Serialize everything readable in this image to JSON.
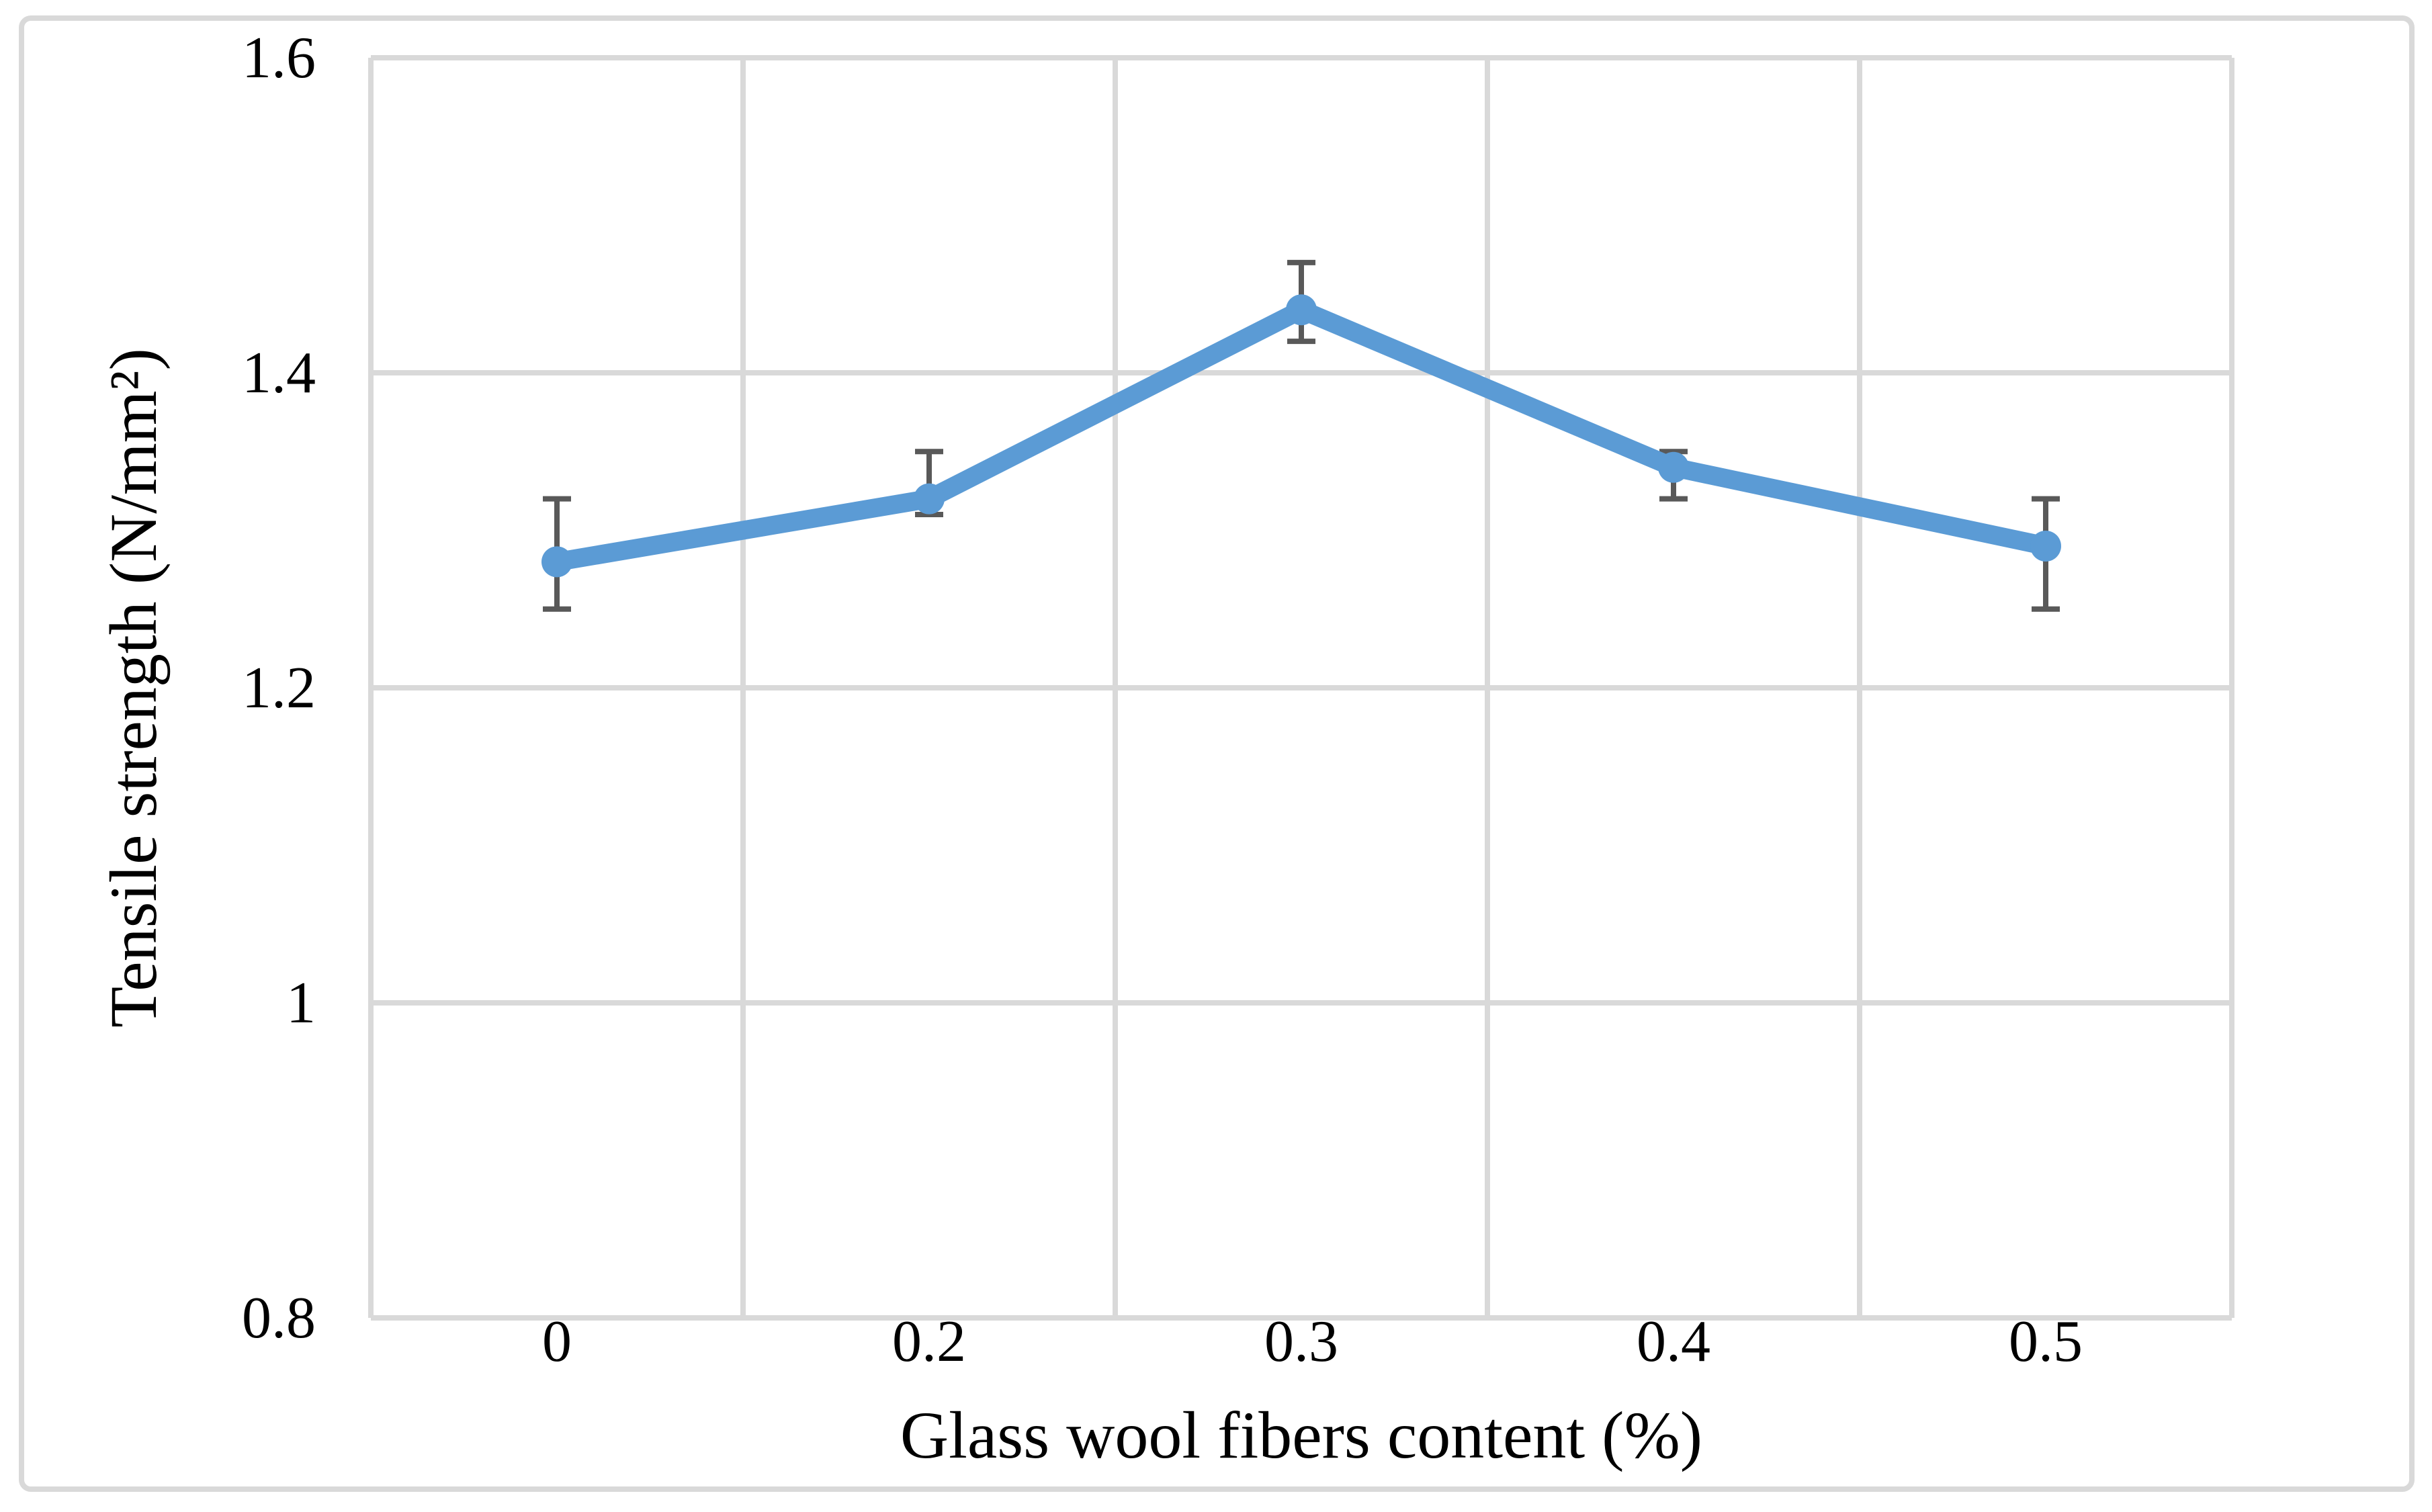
{
  "figure": {
    "background_color": "#ffffff",
    "border_color": "#d9d9d9",
    "text_color": "#000000"
  },
  "chart_data": {
    "type": "line",
    "title": "",
    "xlabel": "Glass wool fibers content (%)",
    "ylabel": "Tensile strength (N/mm²)",
    "categories": [
      "0",
      "0.2",
      "0.3",
      "0.4",
      "0.5"
    ],
    "series": [
      {
        "name": "Tensile strength",
        "values": [
          1.28,
          1.32,
          1.44,
          1.34,
          1.29
        ],
        "error_upper": [
          1.32,
          1.35,
          1.47,
          1.35,
          1.32
        ],
        "error_lower": [
          1.25,
          1.31,
          1.42,
          1.32,
          1.25
        ],
        "color": "#5b9bd5",
        "marker": "circle"
      }
    ],
    "ylim": [
      0.8,
      1.6
    ],
    "yticks": [
      0.8,
      1.0,
      1.2,
      1.4,
      1.6
    ],
    "ytick_labels": [
      "0.8",
      "1",
      "1.2",
      "1.4",
      "1.6"
    ],
    "grid": true,
    "gridline_color": "#d9d9d9",
    "axis_line_color": "#d9d9d9",
    "error_bar_color": "#595959",
    "legend_position": "none"
  }
}
